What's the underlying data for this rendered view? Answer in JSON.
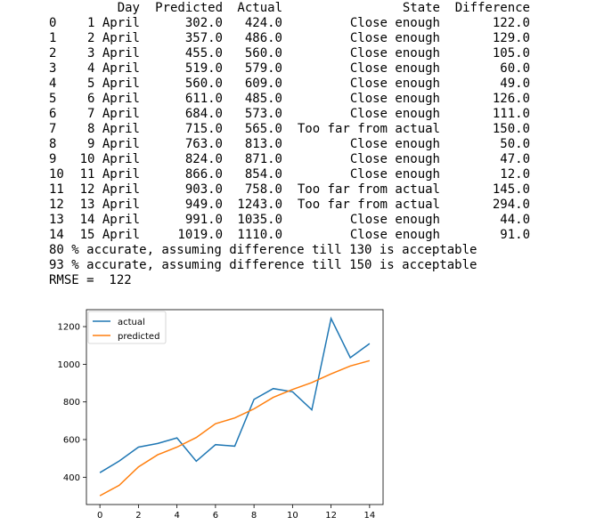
{
  "table": {
    "headers": [
      "",
      "Day",
      "Predicted",
      "Actual",
      "State",
      "Difference"
    ],
    "rows": [
      [
        "0",
        "1 April",
        "302.0",
        "424.0",
        "Close enough",
        "122.0"
      ],
      [
        "1",
        "2 April",
        "357.0",
        "486.0",
        "Close enough",
        "129.0"
      ],
      [
        "2",
        "3 April",
        "455.0",
        "560.0",
        "Close enough",
        "105.0"
      ],
      [
        "3",
        "4 April",
        "519.0",
        "579.0",
        "Close enough",
        "60.0"
      ],
      [
        "4",
        "5 April",
        "560.0",
        "609.0",
        "Close enough",
        "49.0"
      ],
      [
        "5",
        "6 April",
        "611.0",
        "485.0",
        "Close enough",
        "126.0"
      ],
      [
        "6",
        "7 April",
        "684.0",
        "573.0",
        "Close enough",
        "111.0"
      ],
      [
        "7",
        "8 April",
        "715.0",
        "565.0",
        "Too far from actual",
        "150.0"
      ],
      [
        "8",
        "9 April",
        "763.0",
        "813.0",
        "Close enough",
        "50.0"
      ],
      [
        "9",
        "10 April",
        "824.0",
        "871.0",
        "Close enough",
        "47.0"
      ],
      [
        "10",
        "11 April",
        "866.0",
        "854.0",
        "Close enough",
        "12.0"
      ],
      [
        "11",
        "12 April",
        "903.0",
        "758.0",
        "Too far from actual",
        "145.0"
      ],
      [
        "12",
        "13 April",
        "949.0",
        "1243.0",
        "Too far from actual",
        "294.0"
      ],
      [
        "13",
        "14 April",
        "991.0",
        "1035.0",
        "Close enough",
        "44.0"
      ],
      [
        "14",
        "15 April",
        "1019.0",
        "1110.0",
        "Close enough",
        "91.0"
      ]
    ]
  },
  "summary": {
    "line1": "80 % accurate, assuming difference till 130 is acceptable",
    "line2": "93 % accurate, assuming difference till 150 is acceptable",
    "rmse": "RMSE =  122"
  },
  "chart_data": {
    "type": "line",
    "x": [
      0,
      1,
      2,
      3,
      4,
      5,
      6,
      7,
      8,
      9,
      10,
      11,
      12,
      13,
      14
    ],
    "series": [
      {
        "name": "actual",
        "color": "#1f77b4",
        "values": [
          424,
          486,
          560,
          579,
          609,
          485,
          573,
          565,
          813,
          871,
          854,
          758,
          1243,
          1035,
          1110
        ]
      },
      {
        "name": "predicted",
        "color": "#ff7f0e",
        "values": [
          302,
          357,
          455,
          519,
          560,
          611,
          684,
          715,
          763,
          824,
          866,
          903,
          949,
          991,
          1019
        ]
      }
    ],
    "xticks": [
      "0",
      "2",
      "4",
      "6",
      "8",
      "10",
      "12",
      "14"
    ],
    "yticks": [
      "400",
      "600",
      "800",
      "1000",
      "1200"
    ],
    "xlim": [
      -0.7,
      14.7
    ],
    "ylim": [
      255,
      1290
    ],
    "legend": "upper-left",
    "grid": false
  }
}
